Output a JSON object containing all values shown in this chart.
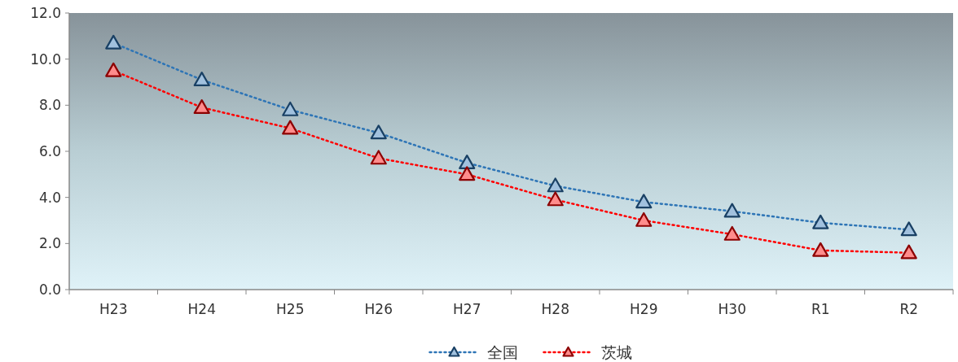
{
  "chart_data": {
    "type": "line",
    "categories": [
      "H23",
      "H24",
      "H25",
      "H26",
      "H27",
      "H28",
      "H29",
      "H30",
      "R1",
      "R2"
    ],
    "series": [
      {
        "name": "全国",
        "color": "#2e75b6",
        "values": [
          10.7,
          9.1,
          7.8,
          6.8,
          5.5,
          4.5,
          3.8,
          3.4,
          2.9,
          2.6
        ]
      },
      {
        "name": "茨城",
        "color": "#ff0000",
        "values": [
          9.5,
          7.9,
          7.0,
          5.7,
          5.0,
          3.9,
          3.0,
          2.4,
          1.7,
          1.6
        ]
      }
    ],
    "ylim": [
      0,
      12
    ],
    "yticks": [
      {
        "value": 0,
        "label": "0.0"
      },
      {
        "value": 2,
        "label": "2.0"
      },
      {
        "value": 4,
        "label": "4.0"
      },
      {
        "value": 6,
        "label": "6.0"
      },
      {
        "value": 8,
        "label": "8.0"
      },
      {
        "value": 10,
        "label": "10.0"
      },
      {
        "value": 12,
        "label": "12.0"
      }
    ],
    "legend": "bottom",
    "marker": "triangle",
    "line_style": "dotted"
  }
}
